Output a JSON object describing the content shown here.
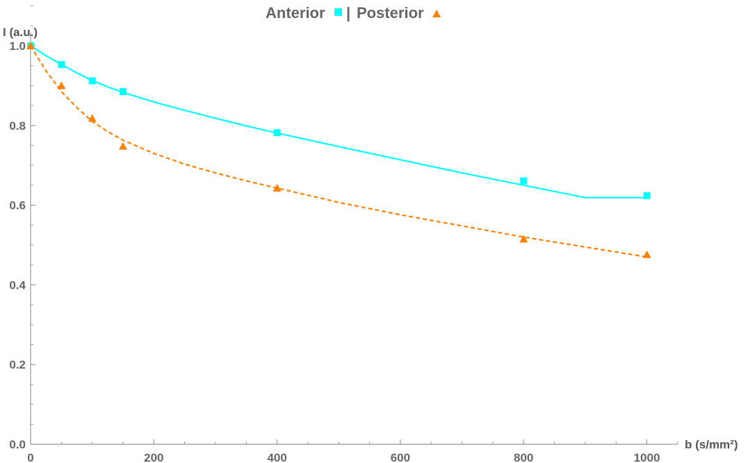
{
  "chart_data": {
    "type": "scatter",
    "title": {
      "series1_name": "Anterior",
      "separator": "|",
      "series2_name": "Posterior"
    },
    "xlabel": "b (s/mm²)",
    "ylabel": "I (a.u.)",
    "xlim": [
      0,
      1050
    ],
    "ylim": [
      0,
      1.0
    ],
    "xticks": [
      0,
      200,
      400,
      600,
      800,
      1000
    ],
    "xtick_labels": [
      "0",
      "200",
      "400",
      "600",
      "800",
      "1000"
    ],
    "yticks": [
      0.0,
      0.2,
      0.4,
      0.6,
      0.8,
      1.0
    ],
    "ytick_labels": [
      "0.0",
      "0.2",
      "0.4",
      "0.6",
      "0.8",
      "1.0"
    ],
    "grid": false,
    "legend": "top-center (in title)",
    "series": [
      {
        "name": "Anterior",
        "marker": "square",
        "color": "#00ffff",
        "line_style": "solid",
        "x": [
          0,
          50,
          100,
          150,
          400,
          800,
          1000
        ],
        "y": [
          1.0,
          0.953,
          0.912,
          0.885,
          0.782,
          0.661,
          0.624
        ],
        "fit": {
          "x": [
            0,
            25,
            50,
            75,
            100,
            125,
            150,
            200,
            250,
            300,
            350,
            400,
            500,
            600,
            700,
            800,
            900,
            1000
          ],
          "y": [
            1.0,
            0.975,
            0.953,
            0.932,
            0.913,
            0.897,
            0.883,
            0.859,
            0.838,
            0.818,
            0.799,
            0.781,
            0.747,
            0.714,
            0.681,
            0.65,
            0.619,
            0.619
          ]
        }
      },
      {
        "name": "Posterior",
        "marker": "triangle",
        "color": "#ff8000",
        "line_style": "dashed",
        "x": [
          0,
          50,
          100,
          150,
          400,
          800,
          1000
        ],
        "y": [
          1.0,
          0.9,
          0.818,
          0.748,
          0.643,
          0.515,
          0.476
        ],
        "fit": {
          "x": [
            0,
            25,
            50,
            75,
            100,
            125,
            150,
            200,
            250,
            300,
            350,
            400,
            500,
            600,
            700,
            800,
            900,
            1000
          ],
          "y": [
            1.0,
            0.937,
            0.885,
            0.845,
            0.81,
            0.785,
            0.763,
            0.73,
            0.703,
            0.681,
            0.661,
            0.643,
            0.607,
            0.576,
            0.548,
            0.52,
            0.495,
            0.47
          ]
        }
      }
    ]
  }
}
